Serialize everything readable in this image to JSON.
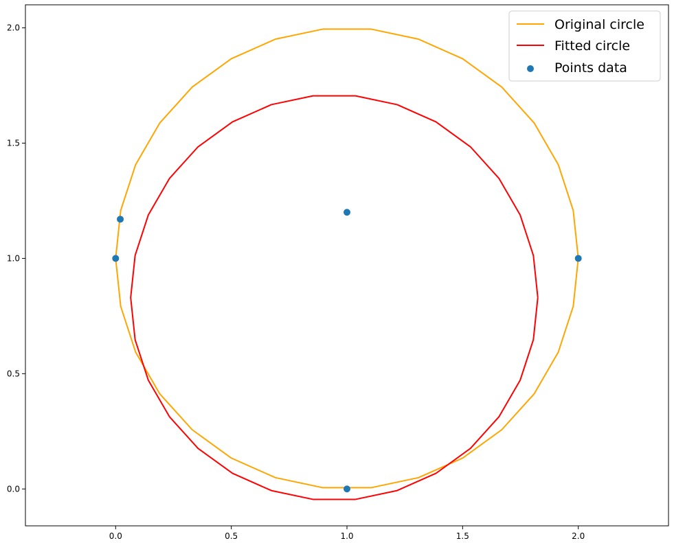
{
  "chart_data": {
    "type": "line",
    "title": "",
    "xlabel": "",
    "ylabel": "",
    "xlim": [
      -0.39,
      2.39
    ],
    "ylim": [
      -0.16,
      2.1
    ],
    "xticks": [
      0.0,
      0.5,
      1.0,
      1.5,
      2.0
    ],
    "xtick_labels": [
      "0.0",
      "0.5",
      "1.0",
      "1.5",
      "2.0"
    ],
    "yticks": [
      0.0,
      0.5,
      1.0,
      1.5,
      2.0
    ],
    "ytick_labels": [
      "0.0",
      "0.5",
      "1.0",
      "1.5",
      "2.0"
    ],
    "grid": false,
    "legend_position": "top-right",
    "series": [
      {
        "name": "Original circle",
        "kind": "line",
        "color": "#FFA500",
        "shape": "circle",
        "center": [
          1.0,
          1.0
        ],
        "radius": 1.0,
        "n_points": 30
      },
      {
        "name": "Fitted circle",
        "kind": "line",
        "color": "#FF0000",
        "shape": "circle",
        "center": [
          0.945,
          0.83
        ],
        "radius": 0.88,
        "n_points": 30
      },
      {
        "name": "Points data",
        "kind": "scatter",
        "color": "#1f77b4",
        "points": [
          {
            "x": 0.0,
            "y": 1.0
          },
          {
            "x": 0.02,
            "y": 1.17
          },
          {
            "x": 1.0,
            "y": 1.2
          },
          {
            "x": 2.0,
            "y": 1.0
          },
          {
            "x": 1.0,
            "y": 0.0
          }
        ]
      }
    ]
  }
}
